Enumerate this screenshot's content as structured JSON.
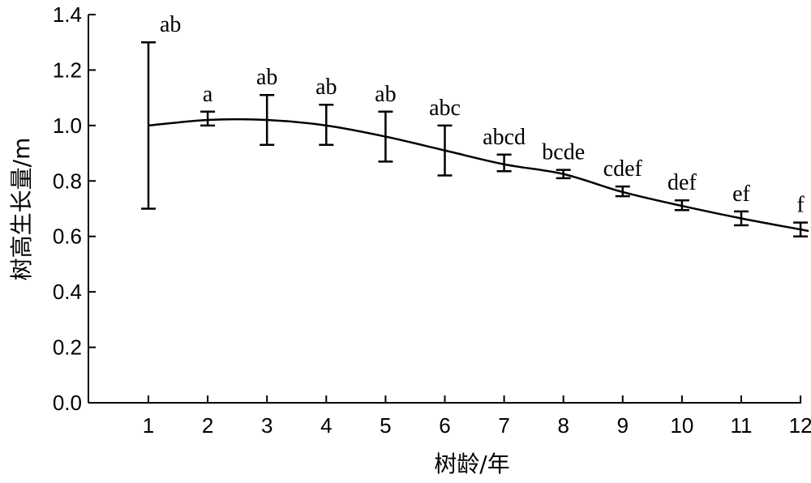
{
  "chart_data": {
    "type": "line",
    "title": "",
    "xlabel": "树龄/年",
    "ylabel": "树高生长量/m",
    "x": [
      1,
      2,
      3,
      4,
      5,
      6,
      7,
      8,
      9,
      10,
      11,
      12
    ],
    "xticks": [
      "1",
      "2",
      "3",
      "4",
      "5",
      "6",
      "7",
      "8",
      "9",
      "10",
      "11",
      "12"
    ],
    "xlim": [
      0,
      12
    ],
    "ylim": [
      0,
      1.4
    ],
    "yticks": [
      "0.0",
      "0.2",
      "0.4",
      "0.6",
      "0.8",
      "1.0",
      "1.2",
      "1.4"
    ],
    "yticks_values": [
      0,
      0.2,
      0.4,
      0.6,
      0.8,
      1.0,
      1.2,
      1.4
    ],
    "grid": false,
    "series": [
      {
        "values": [
          1.0,
          1.02,
          1.02,
          1.0,
          0.96,
          0.91,
          0.86,
          0.825,
          0.76,
          0.71,
          0.665,
          0.625
        ],
        "mean": [
          1.0,
          1.025,
          1.02,
          1.0,
          0.96,
          0.91,
          0.865,
          0.825,
          0.763,
          0.713,
          0.665,
          0.625
        ],
        "error_low": [
          0.7,
          1.0,
          0.93,
          0.93,
          0.87,
          0.82,
          0.835,
          0.81,
          0.745,
          0.695,
          0.64,
          0.6
        ],
        "error_high": [
          1.3,
          1.05,
          1.11,
          1.075,
          1.05,
          1.0,
          0.895,
          0.84,
          0.78,
          0.73,
          0.69,
          0.65
        ],
        "labels": [
          "ab",
          "a",
          "ab",
          "ab",
          "ab",
          "abc",
          "abcd",
          "bcde",
          "cdef",
          "def",
          "ef",
          "f"
        ]
      }
    ]
  }
}
